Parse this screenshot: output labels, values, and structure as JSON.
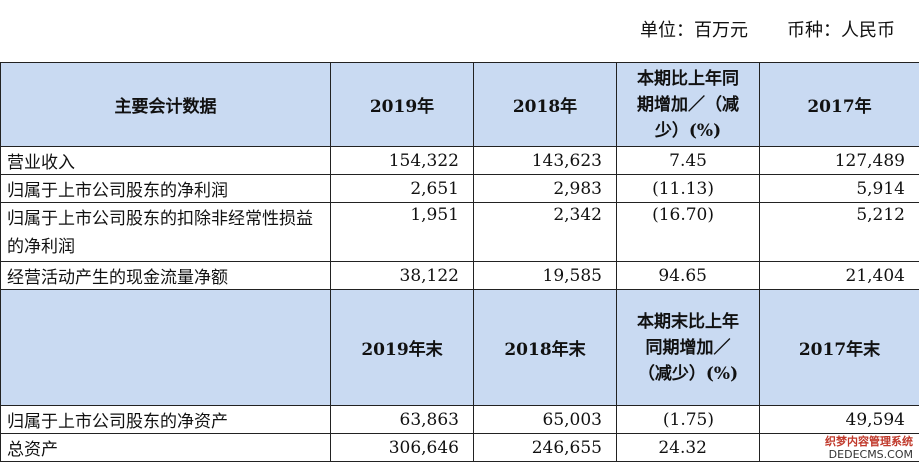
{
  "unit": {
    "label": "单位：百万元",
    "currency": "币种：人民币"
  },
  "header1": {
    "col0": "主要会计数据",
    "col1": "2019年",
    "col2": "2018年",
    "col3": "本期比上年同期增加／（减少）(%)",
    "col4": "2017年"
  },
  "rows1": [
    {
      "label": "营业收入",
      "v2019": "154,322",
      "v2018": "143,623",
      "change": "7.45",
      "v2017": "127,489"
    },
    {
      "label": "归属于上市公司股东的净利润",
      "v2019": "2,651",
      "v2018": "2,983",
      "change": "(11.13)",
      "v2017": "5,914"
    },
    {
      "label": "归属于上市公司股东的扣除非经常性损益的净利润",
      "v2019": "1,951",
      "v2018": "2,342",
      "change": "(16.70)",
      "v2017": "5,212"
    },
    {
      "label": "经营活动产生的现金流量净额",
      "v2019": "38,122",
      "v2018": "19,585",
      "change": "94.65",
      "v2017": "21,404"
    }
  ],
  "header2": {
    "col0": "",
    "col1": "2019年末",
    "col2": "2018年末",
    "col3": "本期末比上年同期增加／（减少）(%)",
    "col4": "2017年末"
  },
  "rows2": [
    {
      "label": "归属于上市公司股东的净资产",
      "v2019": "63,863",
      "v2018": "65,003",
      "change": "(1.75)",
      "v2017": "49,594"
    },
    {
      "label": "总资产",
      "v2019": "306,646",
      "v2018": "246,655",
      "change": "24.32",
      "v2017": ""
    }
  ],
  "watermark": {
    "line1": "织梦内容管理系统",
    "line2": "DEDECMS.COM"
  }
}
